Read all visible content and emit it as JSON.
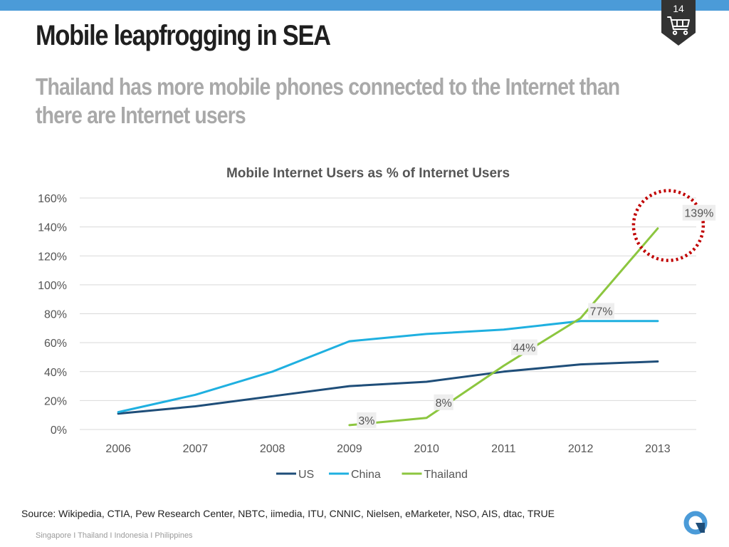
{
  "slide": {
    "title": "Mobile leapfrogging in SEA",
    "subtitle": "Thailand has more mobile phones connected to the Internet than there are Internet users",
    "page_number": "14",
    "source": "Source: Wikipedia, CTIA, Pew Research Center, NBTC, iimedia, ITU, CNNIC, Nielsen, eMarketer, NSO, AIS, dtac, TRUE",
    "footer": "Singapore I Thailand I Indonesia I Philippines",
    "badge_icon": "shopping-cart-icon",
    "logo_icon": "brand-logo-icon"
  },
  "colors": {
    "top_bar": "#4b9bd8",
    "badge": "#333333",
    "US": "#1f4e79",
    "China": "#1fb0e0",
    "Thailand": "#8cc63f",
    "highlight_circle": "#c00000",
    "label_box": "#eeeeee"
  },
  "chart_data": {
    "type": "line",
    "title": "Mobile Internet Users as % of Internet Users",
    "x": [
      "2006",
      "2007",
      "2008",
      "2009",
      "2010",
      "2011",
      "2012",
      "2013"
    ],
    "ylim": [
      0,
      160
    ],
    "yticks": [
      "0%",
      "20%",
      "40%",
      "60%",
      "80%",
      "100%",
      "120%",
      "140%",
      "160%"
    ],
    "grid": true,
    "legend_position": "bottom",
    "series": [
      {
        "name": "US",
        "values": [
          11,
          16,
          23,
          30,
          33,
          40,
          45,
          47
        ]
      },
      {
        "name": "China",
        "values": [
          12,
          24,
          40,
          61,
          66,
          69,
          75,
          75
        ]
      },
      {
        "name": "Thailand",
        "values": [
          null,
          null,
          null,
          3,
          8,
          44,
          77,
          139
        ]
      }
    ],
    "data_labels": [
      {
        "series": "Thailand",
        "x": "2009",
        "text": "3%"
      },
      {
        "series": "Thailand",
        "x": "2010",
        "text": "8%"
      },
      {
        "series": "Thailand",
        "x": "2011",
        "text": "44%"
      },
      {
        "series": "Thailand",
        "x": "2012",
        "text": "77%"
      },
      {
        "series": "Thailand",
        "x": "2013",
        "text": "139%"
      }
    ],
    "annotation": {
      "type": "dotted-circle",
      "series": "Thailand",
      "x": "2013"
    }
  }
}
